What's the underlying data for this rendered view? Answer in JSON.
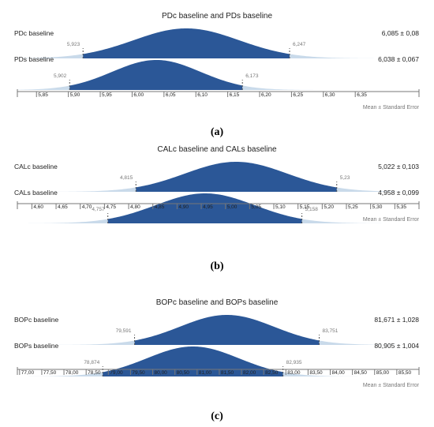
{
  "colors": {
    "fill": "#2b5797",
    "tail": "#c9daea",
    "axis": "#777777",
    "text": "#222222",
    "minor": "#777777",
    "bracket": "#555555"
  },
  "chart_data": [
    {
      "type": "area",
      "title": "PDc baseline and PDs baseline",
      "caption": "(a)",
      "footer": "Mean ± Standard Error",
      "xlim": [
        5.82,
        6.45
      ],
      "ticks": [
        5.85,
        5.9,
        5.95,
        6.0,
        6.05,
        6.1,
        6.15,
        6.2,
        6.25,
        6.3,
        6.35
      ],
      "tick_labels": [
        "5,85",
        "5,90",
        "5,95",
        "6,00",
        "6,05",
        "6,10",
        "6,15",
        "6,20",
        "6,25",
        "6,30",
        "6,35"
      ],
      "series": [
        {
          "name": "PDc baseline",
          "mean": 6.085,
          "low": 5.923,
          "high": 6.247,
          "low_label": "5,923",
          "high_label": "6,247",
          "value_label": "6,085 ± 0,08"
        },
        {
          "name": "PDs baseline",
          "mean": 6.038,
          "low": 5.902,
          "high": 6.173,
          "low_label": "5,902",
          "high_label": "6,173",
          "value_label": "6,038 ± 0,067"
        }
      ]
    },
    {
      "type": "area",
      "title": "CALc baseline and CALs baseline",
      "caption": "(b)",
      "footer": "Mean ± Standard Error",
      "xlim": [
        4.57,
        5.4
      ],
      "ticks": [
        4.6,
        4.65,
        4.7,
        4.75,
        4.8,
        4.85,
        4.9,
        4.95,
        5.0,
        5.05,
        5.1,
        5.15,
        5.2,
        5.25,
        5.3,
        5.35
      ],
      "tick_labels": [
        "4,60",
        "4,65",
        "4,70",
        "4,75",
        "4,80",
        "4,85",
        "4,90",
        "4,95",
        "5,00",
        "5,05",
        "5,10",
        "5,15",
        "5,20",
        "5,25",
        "5,30",
        "5,35"
      ],
      "series": [
        {
          "name": "CALc baseline",
          "mean": 5.022,
          "low": 4.815,
          "high": 5.23,
          "low_label": "4,815",
          "high_label": "5,23",
          "value_label": "5,022 ± 0,103"
        },
        {
          "name": "CALs baseline",
          "mean": 4.958,
          "low": 4.757,
          "high": 5.158,
          "low_label": "4,757",
          "high_label": "5,158",
          "value_label": "4,958 ± 0,099"
        }
      ]
    },
    {
      "type": "area",
      "title": "BOPc baseline and BOPs baseline",
      "caption": "(c)",
      "footer": "Mean ± Standard Error",
      "xlim": [
        76.95,
        86.0
      ],
      "ticks": [
        77.0,
        77.5,
        78.0,
        78.5,
        79.0,
        79.5,
        80.0,
        80.5,
        81.0,
        81.5,
        82.0,
        82.5,
        83.0,
        83.5,
        84.0,
        84.5,
        85.0,
        85.5
      ],
      "tick_labels": [
        "77,00",
        "77,50",
        "78,00",
        "78,50",
        "79,00",
        "79,50",
        "80,00",
        "80,50",
        "81,00",
        "81,50",
        "82,00",
        "82,50",
        "83,00",
        "83,50",
        "84,00",
        "84,50",
        "85,00",
        "85,50"
      ],
      "series": [
        {
          "name": "BOPc baseline",
          "mean": 81.671,
          "low": 79.591,
          "high": 83.751,
          "low_label": "79,591",
          "high_label": "83,751",
          "value_label": "81,671 ± 1,028"
        },
        {
          "name": "BOPs baseline",
          "mean": 80.905,
          "low": 78.874,
          "high": 82.935,
          "low_label": "78,874",
          "high_label": "82,935",
          "value_label": "80,905 ± 1,004"
        }
      ]
    }
  ]
}
